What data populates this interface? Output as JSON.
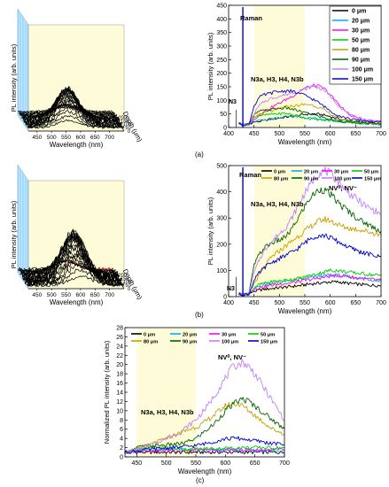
{
  "panels": {
    "a": {
      "label": "(a)"
    },
    "b": {
      "label": "(b)"
    },
    "c": {
      "label": "(c)"
    }
  },
  "chart_data": [
    {
      "id": "a-3d",
      "type": "line",
      "title": "",
      "xlabel": "Wavelength (nm)",
      "ylabel": "PL intensity (arb. units)",
      "zlabel": "Depth (μm)",
      "x_ticks": [
        "450",
        "500",
        "550",
        "600",
        "650",
        "700"
      ],
      "z_ticks": [
        "0",
        "50",
        "100",
        "150",
        "200"
      ],
      "xlim": [
        420,
        750
      ],
      "zlim": [
        0,
        230
      ],
      "n_traces": 26,
      "line_color": "#000000"
    },
    {
      "id": "a-2d",
      "type": "line",
      "title": "",
      "xlabel": "Wavelength (nm)",
      "ylabel": "PL intensity (arb. units)",
      "xlim": [
        400,
        700
      ],
      "ylim": [
        0,
        450
      ],
      "x_ticks": [
        "400",
        "450",
        "500",
        "550",
        "600",
        "650",
        "700"
      ],
      "y_ticks": [
        "0",
        "50",
        "100",
        "150",
        "200",
        "250",
        "300",
        "350",
        "400",
        "450"
      ],
      "legend_position": "top-right",
      "annotations": [
        "Raman",
        "N3a, H3, H4, N3b",
        "N3"
      ],
      "highlight_band": [
        450,
        550
      ],
      "x": [
        420,
        430,
        440,
        450,
        460,
        470,
        480,
        490,
        500,
        510,
        520,
        530,
        540,
        550,
        560,
        570,
        580,
        590,
        600,
        610,
        620,
        630,
        640,
        650,
        660,
        670,
        680,
        690,
        700
      ],
      "series": [
        {
          "name": "0 μm",
          "color": "#000000",
          "values": [
            15,
            10,
            12,
            20,
            22,
            25,
            30,
            32,
            35,
            38,
            40,
            42,
            45,
            48,
            50,
            50,
            48,
            45,
            40,
            35,
            30,
            27,
            25,
            22,
            20,
            18,
            16,
            15,
            15
          ]
        },
        {
          "name": "20 μm",
          "color": "#00b0f0",
          "values": [
            15,
            10,
            12,
            22,
            25,
            28,
            30,
            35,
            38,
            40,
            42,
            40,
            38,
            36,
            35,
            33,
            30,
            28,
            26,
            24,
            22,
            20,
            18,
            16,
            15,
            14,
            13,
            12,
            12
          ]
        },
        {
          "name": "30 μm",
          "color": "#ff00ff",
          "values": [
            15,
            10,
            12,
            30,
            45,
            60,
            70,
            80,
            90,
            100,
            110,
            120,
            135,
            145,
            150,
            155,
            150,
            140,
            120,
            100,
            80,
            60,
            45,
            38,
            32,
            28,
            25,
            24,
            22
          ]
        },
        {
          "name": "50 μm",
          "color": "#00cc00",
          "values": [
            15,
            10,
            12,
            40,
            45,
            45,
            48,
            50,
            50,
            52,
            50,
            45,
            40,
            36,
            32,
            30,
            28,
            26,
            25,
            23,
            22,
            20,
            18,
            17,
            16,
            15,
            14,
            13,
            13
          ]
        },
        {
          "name": "80 μm",
          "color": "#c8a000",
          "values": [
            15,
            10,
            12,
            35,
            50,
            55,
            60,
            65,
            70,
            75,
            78,
            80,
            82,
            85,
            85,
            80,
            72,
            62,
            50,
            40,
            33,
            28,
            25,
            22,
            20,
            18,
            17,
            16,
            15
          ]
        },
        {
          "name": "90 μm",
          "color": "#006400",
          "values": [
            15,
            10,
            12,
            45,
            60,
            62,
            65,
            68,
            70,
            72,
            70,
            65,
            60,
            55,
            50,
            45,
            40,
            35,
            30,
            27,
            24,
            22,
            20,
            18,
            17,
            16,
            15,
            14,
            14
          ]
        },
        {
          "name": "100 μm",
          "color": "#c080ff",
          "values": [
            15,
            10,
            12,
            50,
            80,
            95,
            105,
            110,
            115,
            120,
            125,
            130,
            135,
            140,
            148,
            150,
            145,
            135,
            115,
            95,
            75,
            58,
            45,
            38,
            32,
            28,
            26,
            24,
            22
          ]
        },
        {
          "name": "150 μm",
          "color": "#0000cc",
          "values": [
            15,
            10,
            12,
            80,
            110,
            120,
            125,
            130,
            132,
            135,
            135,
            130,
            125,
            118,
            110,
            100,
            88,
            75,
            62,
            50,
            42,
            36,
            32,
            28,
            26,
            24,
            22,
            21,
            20
          ]
        }
      ]
    },
    {
      "id": "b-3d",
      "type": "line",
      "title": "",
      "xlabel": "Wavelength (nm)",
      "ylabel": "PL intensity (arb. units)",
      "zlabel": "Depth (μm)",
      "x_ticks": [
        "450",
        "500",
        "550",
        "600",
        "650",
        "700"
      ],
      "z_ticks": [
        "0",
        "50",
        "100",
        "150",
        "200"
      ],
      "xlim": [
        420,
        750
      ],
      "zlim": [
        0,
        230
      ],
      "n_traces": 22,
      "line_color": "#000000"
    },
    {
      "id": "b-2d",
      "type": "line",
      "title": "",
      "xlabel": "Wavelength (nm)",
      "ylabel": "PL intensity (arb. units)",
      "xlim": [
        400,
        700
      ],
      "ylim": [
        0,
        500
      ],
      "x_ticks": [
        "400",
        "450",
        "500",
        "550",
        "600",
        "650",
        "700"
      ],
      "y_ticks": [
        "0",
        "100",
        "200",
        "300",
        "400",
        "500"
      ],
      "legend_position": "top",
      "annotations": [
        "Raman",
        "N3a, H3, H4, N3b",
        "NV⁰, NV⁻",
        "N3"
      ],
      "highlight_band": [
        450,
        550
      ],
      "x": [
        420,
        430,
        440,
        450,
        460,
        470,
        480,
        490,
        500,
        510,
        520,
        530,
        540,
        550,
        560,
        570,
        580,
        590,
        600,
        610,
        620,
        630,
        640,
        650,
        660,
        670,
        680,
        690,
        700
      ],
      "series": [
        {
          "name": "0 μm",
          "color": "#000000",
          "values": [
            10,
            8,
            10,
            20,
            25,
            28,
            30,
            32,
            34,
            36,
            38,
            40,
            42,
            45,
            48,
            50,
            52,
            54,
            56,
            56,
            55,
            52,
            50,
            48,
            46,
            45,
            44,
            43,
            42
          ]
        },
        {
          "name": "20 μm",
          "color": "#00b0f0",
          "values": [
            10,
            8,
            10,
            30,
            40,
            45,
            50,
            52,
            55,
            58,
            60,
            62,
            65,
            68,
            72,
            75,
            78,
            80,
            82,
            82,
            80,
            78,
            75,
            72,
            70,
            68,
            65,
            62,
            60
          ]
        },
        {
          "name": "30 μm",
          "color": "#ff00ff",
          "values": [
            10,
            8,
            10,
            28,
            35,
            38,
            42,
            45,
            48,
            50,
            52,
            55,
            58,
            62,
            65,
            68,
            72,
            75,
            78,
            80,
            80,
            78,
            75,
            72,
            70,
            68,
            66,
            64,
            62
          ]
        },
        {
          "name": "50 μm",
          "color": "#00cc00",
          "values": [
            10,
            8,
            10,
            35,
            45,
            50,
            55,
            58,
            60,
            62,
            65,
            68,
            70,
            75,
            80,
            85,
            90,
            95,
            100,
            100,
            98,
            95,
            92,
            90,
            88,
            86,
            84,
            82,
            80
          ]
        },
        {
          "name": "80 μm",
          "color": "#c8a000",
          "values": [
            10,
            8,
            10,
            50,
            80,
            110,
            140,
            160,
            175,
            190,
            205,
            220,
            235,
            250,
            265,
            280,
            290,
            295,
            290,
            280,
            270,
            265,
            260,
            258,
            255,
            250,
            245,
            240,
            235
          ]
        },
        {
          "name": "90 μm",
          "color": "#006400",
          "values": [
            10,
            8,
            10,
            120,
            160,
            185,
            200,
            210,
            215,
            225,
            245,
            275,
            310,
            345,
            375,
            395,
            410,
            405,
            390,
            370,
            350,
            335,
            320,
            305,
            290,
            280,
            270,
            260,
            250
          ]
        },
        {
          "name": "100 μm",
          "color": "#c080ff",
          "values": [
            10,
            8,
            10,
            90,
            140,
            175,
            200,
            220,
            240,
            260,
            285,
            320,
            360,
            395,
            425,
            455,
            475,
            480,
            470,
            450,
            430,
            410,
            390,
            375,
            360,
            345,
            335,
            325,
            315
          ]
        },
        {
          "name": "150 μm",
          "color": "#0000cc",
          "values": [
            10,
            8,
            10,
            60,
            90,
            110,
            125,
            135,
            145,
            155,
            165,
            175,
            190,
            205,
            220,
            230,
            235,
            232,
            225,
            215,
            205,
            195,
            185,
            178,
            170,
            165,
            160,
            155,
            150
          ]
        }
      ]
    },
    {
      "id": "c-2d",
      "type": "line",
      "title": "",
      "xlabel": "Wavelength (nm)",
      "ylabel": "Normalized PL intensity (arb. units)",
      "xlim": [
        430,
        700
      ],
      "ylim": [
        0,
        28
      ],
      "x_ticks": [
        "450",
        "500",
        "550",
        "600",
        "650",
        "700"
      ],
      "y_ticks": [
        "0",
        "2",
        "4",
        "6",
        "8",
        "10",
        "12",
        "14",
        "16",
        "18",
        "20",
        "22",
        "24",
        "26",
        "28"
      ],
      "legend_position": "top",
      "annotations": [
        "N3a, H3, H4, N3b",
        "NV⁰, NV⁻"
      ],
      "highlight_band": [
        450,
        550
      ],
      "x": [
        430,
        440,
        450,
        460,
        470,
        480,
        490,
        500,
        510,
        520,
        530,
        540,
        550,
        560,
        570,
        580,
        590,
        600,
        610,
        620,
        630,
        640,
        650,
        660,
        670,
        680,
        690,
        700
      ],
      "series": [
        {
          "name": "0 μm",
          "color": "#000000",
          "values": [
            1.0,
            1.0,
            1.0,
            1.0,
            1.0,
            1.0,
            1.0,
            1.0,
            1.0,
            1.0,
            1.0,
            1.0,
            1.0,
            1.0,
            1.0,
            1.0,
            1.0,
            1.0,
            1.0,
            1.0,
            1.0,
            1.0,
            1.0,
            1.0,
            1.0,
            1.0,
            1.0,
            1.0
          ]
        },
        {
          "name": "20 μm",
          "color": "#00b0f0",
          "values": [
            1.0,
            1.2,
            1.4,
            1.5,
            1.6,
            1.6,
            1.6,
            1.7,
            1.7,
            1.7,
            1.6,
            1.5,
            1.5,
            1.5,
            1.5,
            1.5,
            1.5,
            1.5,
            1.5,
            1.5,
            1.4,
            1.4,
            1.4,
            1.4,
            1.4,
            1.4,
            1.4,
            1.4
          ]
        },
        {
          "name": "30 μm",
          "color": "#ff00ff",
          "values": [
            1.0,
            1.1,
            1.3,
            1.4,
            1.4,
            1.4,
            1.4,
            1.4,
            1.4,
            1.4,
            1.4,
            1.4,
            1.4,
            1.4,
            1.4,
            1.4,
            1.4,
            1.4,
            1.5,
            1.5,
            1.5,
            1.5,
            1.5,
            1.5,
            1.5,
            1.5,
            1.5,
            1.5
          ]
        },
        {
          "name": "50 μm",
          "color": "#00cc00",
          "values": [
            1.0,
            1.3,
            1.8,
            2.0,
            2.0,
            2.0,
            2.0,
            2.0,
            1.9,
            1.8,
            1.7,
            1.7,
            1.7,
            1.7,
            1.8,
            1.8,
            1.8,
            1.9,
            1.9,
            2.0,
            2.0,
            2.0,
            2.0,
            2.0,
            2.0,
            2.0,
            2.0,
            2.0
          ]
        },
        {
          "name": "80 μm",
          "color": "#c8a000",
          "values": [
            1.0,
            1.2,
            1.6,
            2.0,
            2.5,
            3.0,
            3.5,
            4.0,
            4.5,
            5.0,
            5.5,
            6.0,
            6.5,
            7.0,
            8.0,
            9.0,
            10.0,
            11.0,
            11.5,
            11.5,
            11.0,
            10.0,
            9.0,
            8.0,
            7.0,
            6.0,
            5.5,
            5.0
          ]
        },
        {
          "name": "90 μm",
          "color": "#006400",
          "values": [
            1.0,
            1.3,
            2.0,
            2.3,
            2.4,
            2.4,
            2.5,
            2.6,
            2.7,
            2.8,
            3.0,
            3.5,
            4.0,
            5.0,
            6.0,
            7.0,
            8.5,
            10.0,
            11.0,
            12.0,
            12.5,
            12.0,
            11.0,
            10.0,
            9.0,
            8.0,
            7.0,
            6.0
          ]
        },
        {
          "name": "100 μm",
          "color": "#c080ff",
          "values": [
            1.0,
            1.2,
            1.6,
            2.0,
            2.5,
            3.0,
            3.5,
            4.0,
            4.6,
            5.2,
            6.0,
            7.0,
            8.0,
            9.5,
            11.0,
            13.0,
            15.0,
            17.0,
            19.0,
            20.0,
            20.5,
            19.5,
            18.0,
            16.0,
            14.0,
            12.0,
            10.0,
            8.0
          ]
        },
        {
          "name": "150 μm",
          "color": "#0000cc",
          "values": [
            1.0,
            1.1,
            1.3,
            1.5,
            1.6,
            1.7,
            1.8,
            1.9,
            2.0,
            2.1,
            2.2,
            2.3,
            2.5,
            2.7,
            3.0,
            3.3,
            3.6,
            3.9,
            4.0,
            4.0,
            3.9,
            3.7,
            3.5,
            3.3,
            3.1,
            2.9,
            2.8,
            2.7
          ]
        }
      ]
    }
  ]
}
